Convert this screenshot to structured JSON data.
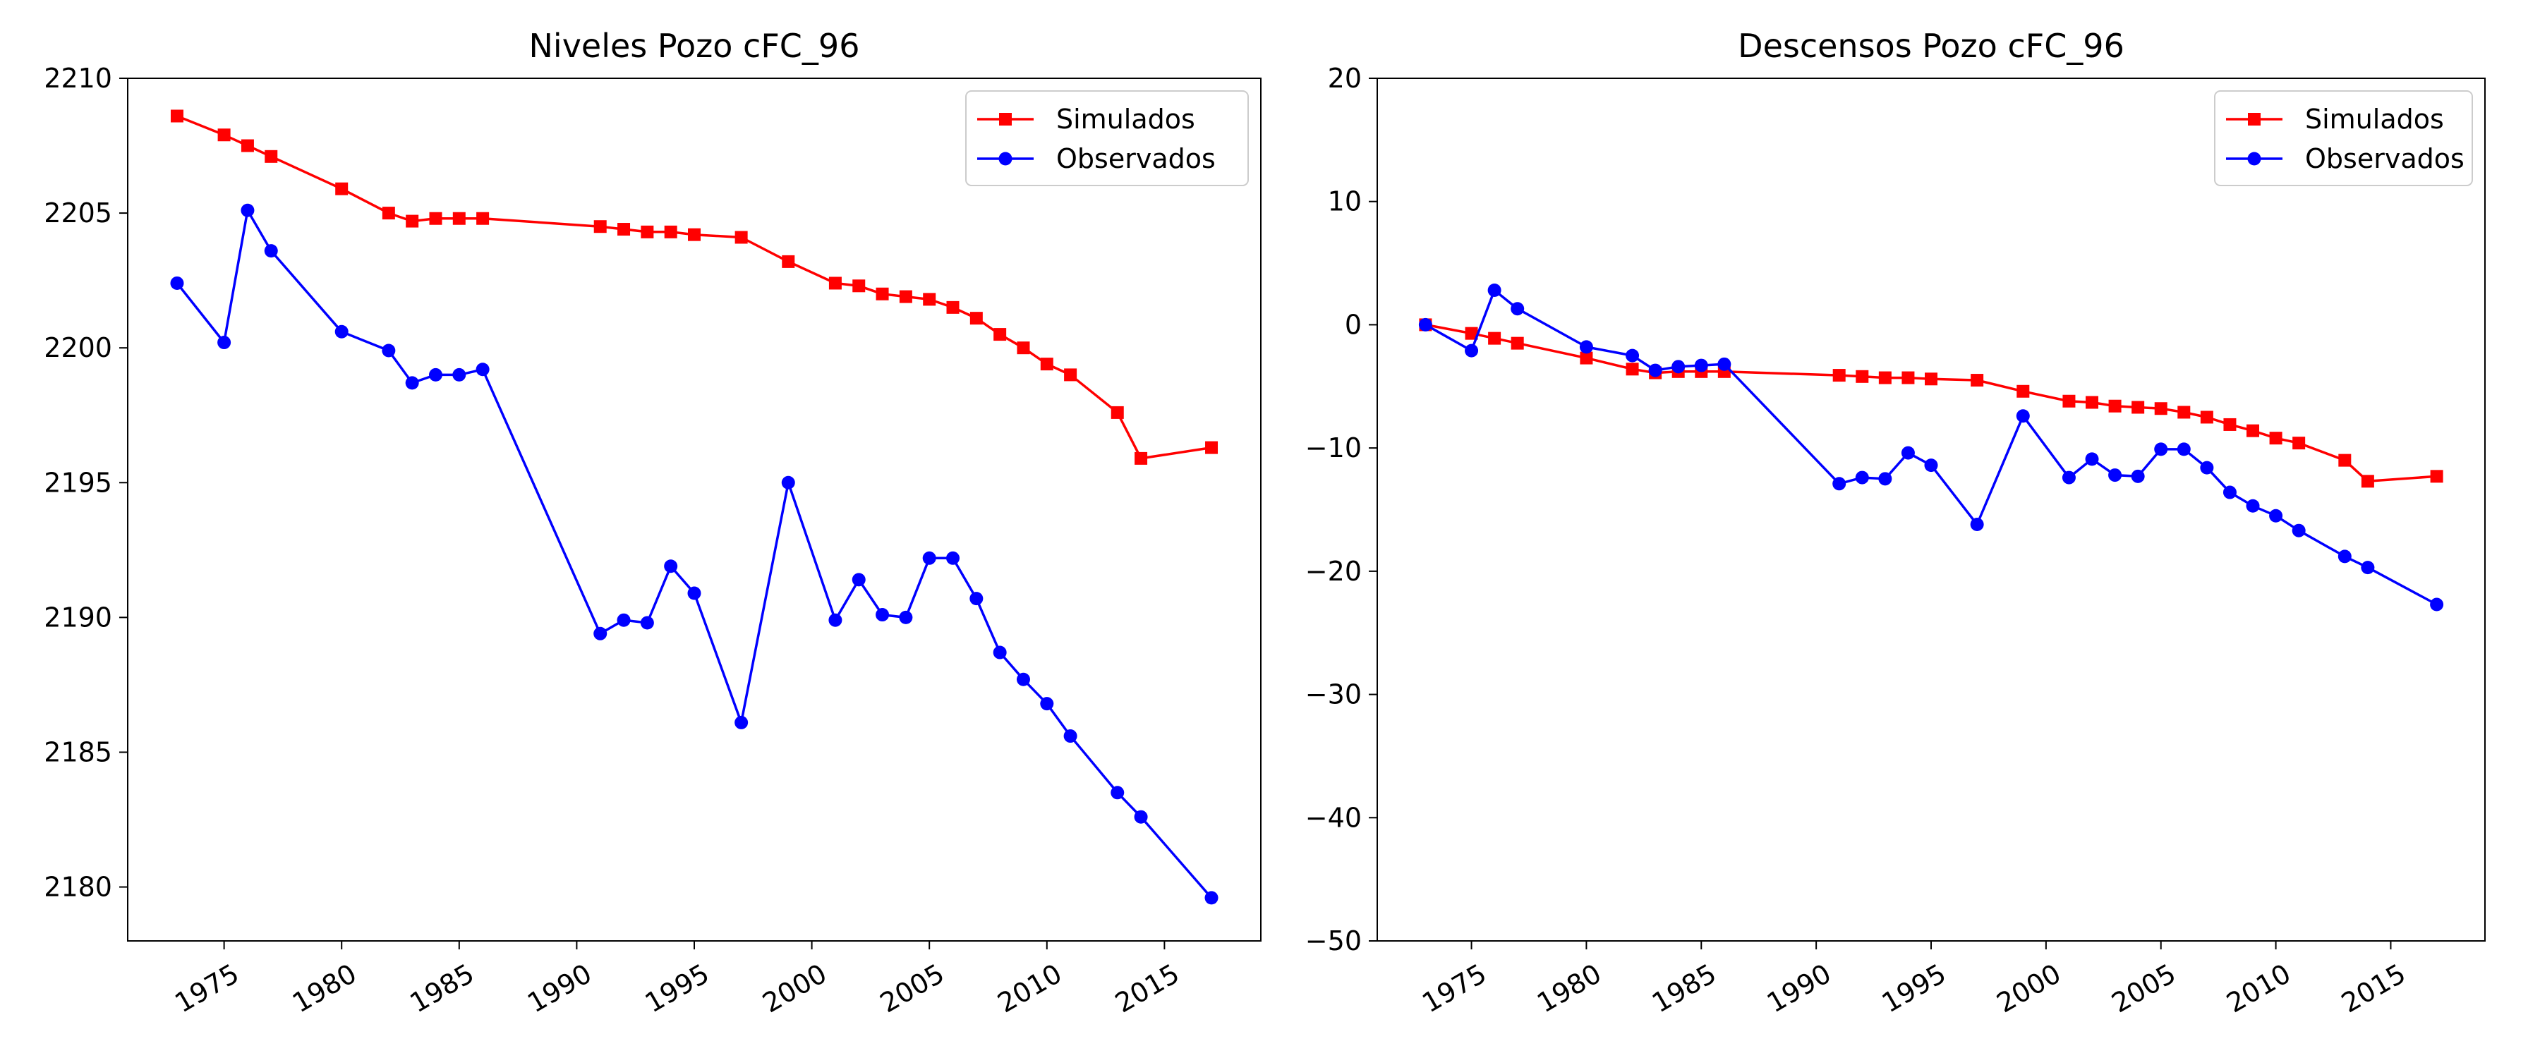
{
  "chart_data": [
    {
      "type": "line",
      "title": "Niveles Pozo cFC_96",
      "xlabel": "",
      "ylabel": "",
      "xlim": [
        1970.9,
        2019.1
      ],
      "ylim": [
        2178,
        2210
      ],
      "xticks": [
        1975,
        1980,
        1985,
        1990,
        1995,
        2000,
        2005,
        2010,
        2015
      ],
      "yticks": [
        2180,
        2185,
        2190,
        2195,
        2200,
        2205,
        2210
      ],
      "grid": false,
      "legend": "upper right",
      "series": [
        {
          "name": "Simulados",
          "color": "#ff0000",
          "marker": "square",
          "x": [
            1973,
            1975,
            1976,
            1977,
            1980,
            1982,
            1983,
            1984,
            1985,
            1986,
            1991,
            1992,
            1993,
            1994,
            1995,
            1997,
            1999,
            2001,
            2002,
            2003,
            2004,
            2005,
            2006,
            2007,
            2008,
            2009,
            2010,
            2011,
            2013,
            2014,
            2017
          ],
          "y": [
            2208.6,
            2207.9,
            2207.5,
            2207.1,
            2205.9,
            2205.0,
            2204.7,
            2204.8,
            2204.8,
            2204.8,
            2204.5,
            2204.4,
            2204.3,
            2204.3,
            2204.2,
            2204.1,
            2203.2,
            2202.4,
            2202.3,
            2202.0,
            2201.9,
            2201.8,
            2201.5,
            2201.1,
            2200.5,
            2200.0,
            2199.4,
            2199.0,
            2197.6,
            2195.9,
            2196.3
          ]
        },
        {
          "name": "Observados",
          "color": "#0000ff",
          "marker": "circle",
          "x": [
            1973,
            1975,
            1976,
            1977,
            1980,
            1982,
            1983,
            1984,
            1985,
            1986,
            1991,
            1992,
            1993,
            1994,
            1995,
            1997,
            1999,
            2001,
            2002,
            2003,
            2004,
            2005,
            2006,
            2007,
            2008,
            2009,
            2010,
            2011,
            2013,
            2014,
            2017
          ],
          "y": [
            2202.4,
            2200.2,
            2205.1,
            2203.6,
            2200.6,
            2199.9,
            2198.7,
            2199.0,
            2199.0,
            2199.2,
            2189.4,
            2189.9,
            2189.8,
            2191.9,
            2190.9,
            2186.1,
            2195.0,
            2189.9,
            2191.4,
            2190.1,
            2190.0,
            2192.2,
            2192.2,
            2190.7,
            2188.7,
            2187.7,
            2186.8,
            2185.6,
            2183.5,
            2182.6,
            2179.6
          ]
        }
      ]
    },
    {
      "type": "line",
      "title": "Descensos Pozo cFC_96",
      "xlabel": "",
      "ylabel": "",
      "xlim": [
        1970.9,
        2019.1
      ],
      "ylim": [
        -50,
        20
      ],
      "xticks": [
        1975,
        1980,
        1985,
        1990,
        1995,
        2000,
        2005,
        2010,
        2015
      ],
      "yticks": [
        -50,
        -40,
        -30,
        -20,
        -10,
        0,
        10,
        20
      ],
      "ytick_labels": [
        "−50",
        "−40",
        "−30",
        "−20",
        "−10",
        "0",
        "10",
        "20"
      ],
      "grid": false,
      "legend": "upper right",
      "series": [
        {
          "name": "Simulados",
          "color": "#ff0000",
          "marker": "square",
          "x": [
            1973,
            1975,
            1976,
            1977,
            1980,
            1982,
            1983,
            1984,
            1985,
            1986,
            1991,
            1992,
            1993,
            1994,
            1995,
            1997,
            1999,
            2001,
            2002,
            2003,
            2004,
            2005,
            2006,
            2007,
            2008,
            2009,
            2010,
            2011,
            2013,
            2014,
            2017
          ],
          "y": [
            0.0,
            -0.7,
            -1.1,
            -1.5,
            -2.7,
            -3.6,
            -3.9,
            -3.8,
            -3.8,
            -3.8,
            -4.1,
            -4.2,
            -4.3,
            -4.3,
            -4.4,
            -4.5,
            -5.4,
            -6.2,
            -6.3,
            -6.6,
            -6.7,
            -6.8,
            -7.1,
            -7.5,
            -8.1,
            -8.6,
            -9.2,
            -9.6,
            -11.0,
            -12.7,
            -12.3
          ]
        },
        {
          "name": "Observados",
          "color": "#0000ff",
          "marker": "circle",
          "x": [
            1973,
            1975,
            1976,
            1977,
            1980,
            1982,
            1983,
            1984,
            1985,
            1986,
            1991,
            1992,
            1993,
            1994,
            1995,
            1997,
            1999,
            2001,
            2002,
            2003,
            2004,
            2005,
            2006,
            2007,
            2008,
            2009,
            2010,
            2011,
            2013,
            2014,
            2017
          ],
          "y": [
            0.0,
            -2.1,
            2.8,
            1.3,
            -1.8,
            -2.5,
            -3.7,
            -3.4,
            -3.3,
            -3.2,
            -12.9,
            -12.4,
            -12.5,
            -10.4,
            -11.4,
            -16.2,
            -7.4,
            -12.4,
            -10.9,
            -12.2,
            -12.3,
            -10.1,
            -10.1,
            -11.6,
            -13.6,
            -14.7,
            -15.5,
            -16.7,
            -18.8,
            -19.7,
            -22.7
          ]
        }
      ]
    }
  ]
}
